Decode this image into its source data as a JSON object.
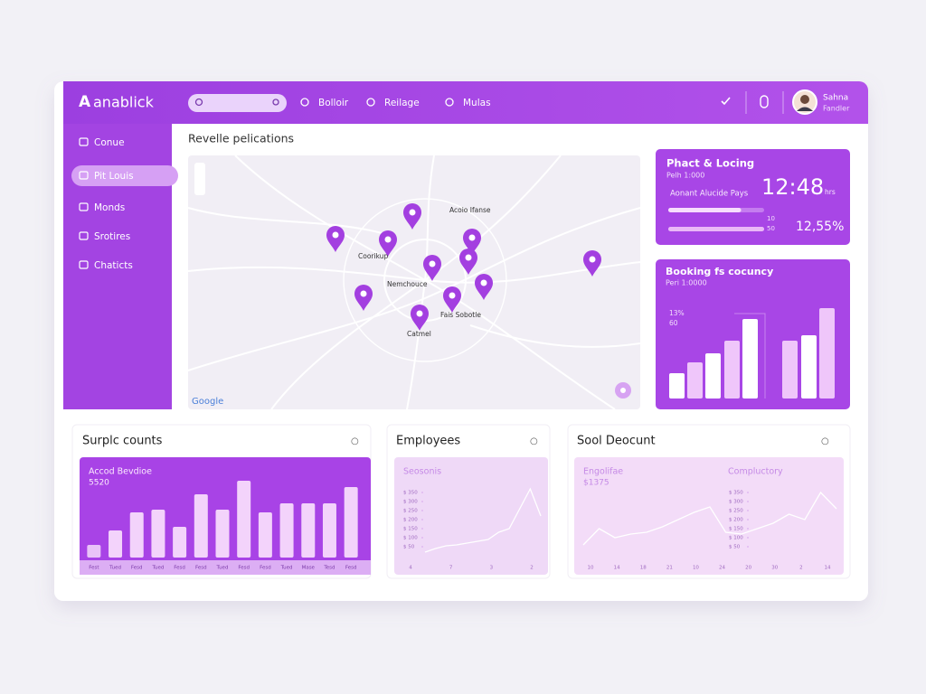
{
  "brand": "anablick",
  "nav": [
    "Bolloir",
    "Reilage",
    "Mulas"
  ],
  "user": {
    "name": "Sahna",
    "role": "Fandler"
  },
  "sidebar": [
    "Conue",
    "Pit Louis",
    "Monds",
    "Srotires",
    "Chaticts"
  ],
  "map": {
    "title": "Revelle pelications",
    "places": [
      "Acoio Ifanse",
      "Coorikup",
      "Nemchouce",
      "Fais Sobotle",
      "Catmel"
    ],
    "attribution": "Google"
  },
  "card_location": {
    "title": "Phact & Locing",
    "subtitle": "Pelh 1:000",
    "label": "Aonant Alucide Pays",
    "value": "12:48",
    "unit": "hrs",
    "progress": [
      76,
      100
    ],
    "progress_labels": [
      "10",
      "50"
    ],
    "percent": "12,55%"
  },
  "card_booking": {
    "title": "Booking fs cocuncy",
    "subtitle": "Peri 1:0000",
    "axis_labels": [
      "13%",
      "60"
    ],
    "chart": {
      "type": "bar",
      "values": [
        28,
        40,
        50,
        64,
        88,
        64,
        70,
        100
      ]
    }
  },
  "bottom": [
    {
      "title": "Surplc counts",
      "chart_title": "Accod Bevdioe",
      "chart_value": "5520",
      "chart": {
        "type": "bar",
        "categories": [
          "Fest",
          "Tued",
          "Fesd",
          "Tued",
          "Fesd",
          "Fesd",
          "Tued",
          "Fesd",
          "Fesd",
          "Tued",
          "Mase",
          "Tesd",
          "Fesd"
        ],
        "values": [
          14,
          30,
          50,
          53,
          34,
          70,
          53,
          85,
          50,
          60,
          60,
          60,
          78
        ]
      }
    },
    {
      "title": "Employees",
      "chart_title": "Seosonis",
      "chart": {
        "type": "line",
        "values": [
          20,
          40,
          55,
          60,
          70,
          80,
          90,
          130,
          150,
          260,
          370,
          220
        ],
        "ylim": [
          0,
          400
        ],
        "yticks": [
          {
            "value": 350,
            "label": "$ 350"
          },
          {
            "value": 300,
            "label": "$ 300"
          },
          {
            "value": 250,
            "label": "$ 250"
          },
          {
            "value": 200,
            "label": "$ 200"
          },
          {
            "value": 150,
            "label": "$ 150"
          },
          {
            "value": 100,
            "label": "$ 100"
          },
          {
            "value": 50,
            "label": "$ 50"
          }
        ],
        "x_labels": [
          "4",
          "7",
          "3",
          "2"
        ]
      }
    },
    {
      "title": "Sool Deocunt",
      "chart_title": "Engolifae",
      "chart_value": "$1375",
      "chart_subtitle": "Compluctory",
      "chart": {
        "type": "line",
        "values": [
          60,
          150,
          100,
          120,
          130,
          160,
          200,
          240,
          270,
          130,
          120,
          150,
          180,
          230,
          200,
          350,
          260
        ],
        "ylim": [
          0,
          400
        ],
        "yticks": [
          {
            "value": 350,
            "label": "$ 350"
          },
          {
            "value": 300,
            "label": "$ 300"
          },
          {
            "value": 250,
            "label": "$ 250"
          },
          {
            "value": 200,
            "label": "$ 200"
          },
          {
            "value": 150,
            "label": "$ 150"
          },
          {
            "value": 100,
            "label": "$ 100"
          },
          {
            "value": 50,
            "label": "$ 50"
          }
        ],
        "x_labels": [
          "10",
          "14",
          "18",
          "21",
          "10",
          "24",
          "20",
          "30",
          "2",
          "14"
        ]
      }
    }
  ]
}
